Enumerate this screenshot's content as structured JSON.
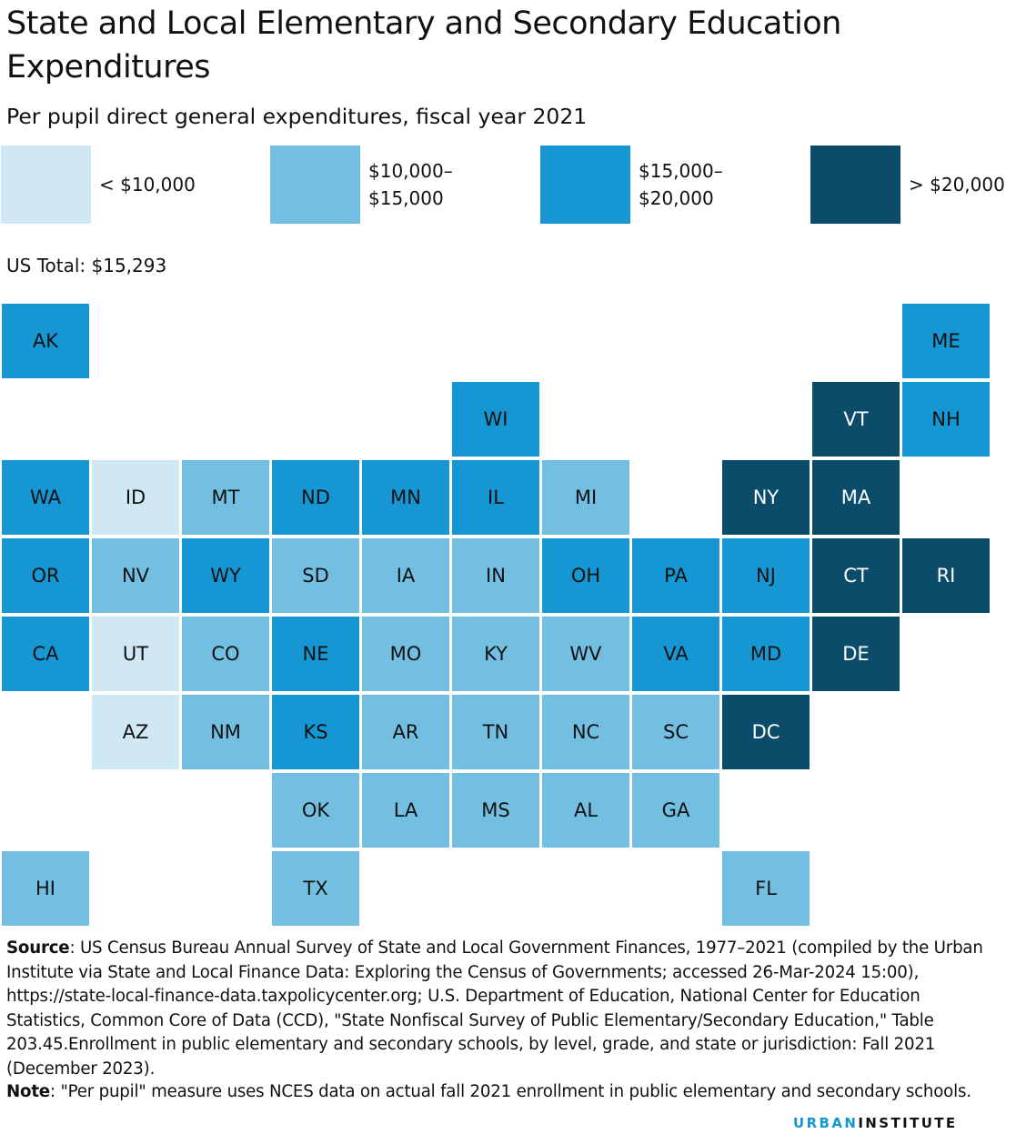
{
  "header": {
    "title": "State and Local Elementary and Secondary Education Expenditures",
    "subtitle": "Per pupil direct general expenditures, fiscal year 2021"
  },
  "legend": [
    {
      "label": "< $10,000",
      "color": "#cfe8f3",
      "text_color": "#111111"
    },
    {
      "label": "$10,000–$15,000",
      "color": "#73bfe2",
      "text_color": "#111111"
    },
    {
      "label": "$15,000–$20,000",
      "color": "#1696d2",
      "text_color": "#111111"
    },
    {
      "label": "> $20,000",
      "color": "#0a4c6a",
      "text_color": "#ffffff"
    }
  ],
  "us_total": "US Total: $15,293",
  "chart_data": {
    "type": "tile-map",
    "title": "State and Local Elementary and Secondary Education Expenditures",
    "subtitle": "Per pupil direct general expenditures, fiscal year 2021",
    "bins": [
      "< $10,000",
      "$10,000–$15,000",
      "$15,000–$20,000",
      "> $20,000"
    ],
    "us_total": 15293,
    "states": [
      {
        "state": "AK",
        "bin": 2,
        "row": 0,
        "col": 0
      },
      {
        "state": "ME",
        "bin": 2,
        "row": 0,
        "col": 10
      },
      {
        "state": "WI",
        "bin": 2,
        "row": 1,
        "col": 5
      },
      {
        "state": "VT",
        "bin": 3,
        "row": 1,
        "col": 9
      },
      {
        "state": "NH",
        "bin": 2,
        "row": 1,
        "col": 10
      },
      {
        "state": "WA",
        "bin": 2,
        "row": 2,
        "col": 0
      },
      {
        "state": "ID",
        "bin": 0,
        "row": 2,
        "col": 1
      },
      {
        "state": "MT",
        "bin": 1,
        "row": 2,
        "col": 2
      },
      {
        "state": "ND",
        "bin": 2,
        "row": 2,
        "col": 3
      },
      {
        "state": "MN",
        "bin": 2,
        "row": 2,
        "col": 4
      },
      {
        "state": "IL",
        "bin": 2,
        "row": 2,
        "col": 5
      },
      {
        "state": "MI",
        "bin": 1,
        "row": 2,
        "col": 6
      },
      {
        "state": "NY",
        "bin": 3,
        "row": 2,
        "col": 8
      },
      {
        "state": "MA",
        "bin": 3,
        "row": 2,
        "col": 9
      },
      {
        "state": "OR",
        "bin": 2,
        "row": 3,
        "col": 0
      },
      {
        "state": "NV",
        "bin": 1,
        "row": 3,
        "col": 1
      },
      {
        "state": "WY",
        "bin": 2,
        "row": 3,
        "col": 2
      },
      {
        "state": "SD",
        "bin": 1,
        "row": 3,
        "col": 3
      },
      {
        "state": "IA",
        "bin": 1,
        "row": 3,
        "col": 4
      },
      {
        "state": "IN",
        "bin": 1,
        "row": 3,
        "col": 5
      },
      {
        "state": "OH",
        "bin": 2,
        "row": 3,
        "col": 6
      },
      {
        "state": "PA",
        "bin": 2,
        "row": 3,
        "col": 7
      },
      {
        "state": "NJ",
        "bin": 2,
        "row": 3,
        "col": 8
      },
      {
        "state": "CT",
        "bin": 3,
        "row": 3,
        "col": 9
      },
      {
        "state": "RI",
        "bin": 3,
        "row": 3,
        "col": 10
      },
      {
        "state": "CA",
        "bin": 2,
        "row": 4,
        "col": 0
      },
      {
        "state": "UT",
        "bin": 0,
        "row": 4,
        "col": 1
      },
      {
        "state": "CO",
        "bin": 1,
        "row": 4,
        "col": 2
      },
      {
        "state": "NE",
        "bin": 2,
        "row": 4,
        "col": 3
      },
      {
        "state": "MO",
        "bin": 1,
        "row": 4,
        "col": 4
      },
      {
        "state": "KY",
        "bin": 1,
        "row": 4,
        "col": 5
      },
      {
        "state": "WV",
        "bin": 1,
        "row": 4,
        "col": 6
      },
      {
        "state": "VA",
        "bin": 2,
        "row": 4,
        "col": 7
      },
      {
        "state": "MD",
        "bin": 2,
        "row": 4,
        "col": 8
      },
      {
        "state": "DE",
        "bin": 3,
        "row": 4,
        "col": 9
      },
      {
        "state": "AZ",
        "bin": 0,
        "row": 5,
        "col": 1
      },
      {
        "state": "NM",
        "bin": 1,
        "row": 5,
        "col": 2
      },
      {
        "state": "KS",
        "bin": 2,
        "row": 5,
        "col": 3
      },
      {
        "state": "AR",
        "bin": 1,
        "row": 5,
        "col": 4
      },
      {
        "state": "TN",
        "bin": 1,
        "row": 5,
        "col": 5
      },
      {
        "state": "NC",
        "bin": 1,
        "row": 5,
        "col": 6
      },
      {
        "state": "SC",
        "bin": 1,
        "row": 5,
        "col": 7
      },
      {
        "state": "DC",
        "bin": 3,
        "row": 5,
        "col": 8
      },
      {
        "state": "OK",
        "bin": 1,
        "row": 6,
        "col": 3
      },
      {
        "state": "LA",
        "bin": 1,
        "row": 6,
        "col": 4
      },
      {
        "state": "MS",
        "bin": 1,
        "row": 6,
        "col": 5
      },
      {
        "state": "AL",
        "bin": 1,
        "row": 6,
        "col": 6
      },
      {
        "state": "GA",
        "bin": 1,
        "row": 6,
        "col": 7
      },
      {
        "state": "HI",
        "bin": 1,
        "row": 7,
        "col": 0
      },
      {
        "state": "TX",
        "bin": 1,
        "row": 7,
        "col": 3
      },
      {
        "state": "FL",
        "bin": 1,
        "row": 7,
        "col": 8
      }
    ]
  },
  "footer": {
    "source_label": "Source",
    "source_text": ": US Census Bureau Annual Survey of State and Local Government Finances, 1977–2021 (compiled by the Urban Institute via State and Local Finance Data: Exploring the Census of Governments; accessed 26-Mar-2024 15:00), https://state-local-finance-data.taxpolicycenter.org; U.S. Department of Education, National Center for Education Statistics, Common Core of Data (CCD), \"State Nonfiscal Survey of Public Elementary/Secondary Education,\" Table 203.45.Enrollment in public elementary and secondary schools, by level, grade, and state or jurisdiction: Fall 2021 (December 2023).",
    "note_label": "Note",
    "note_text": ": \"Per pupil\" measure uses NCES data on actual fall 2021 enrollment in public elementary and secondary schools.",
    "logo_part1": "URBAN",
    "logo_part2": "INSTITUTE"
  }
}
